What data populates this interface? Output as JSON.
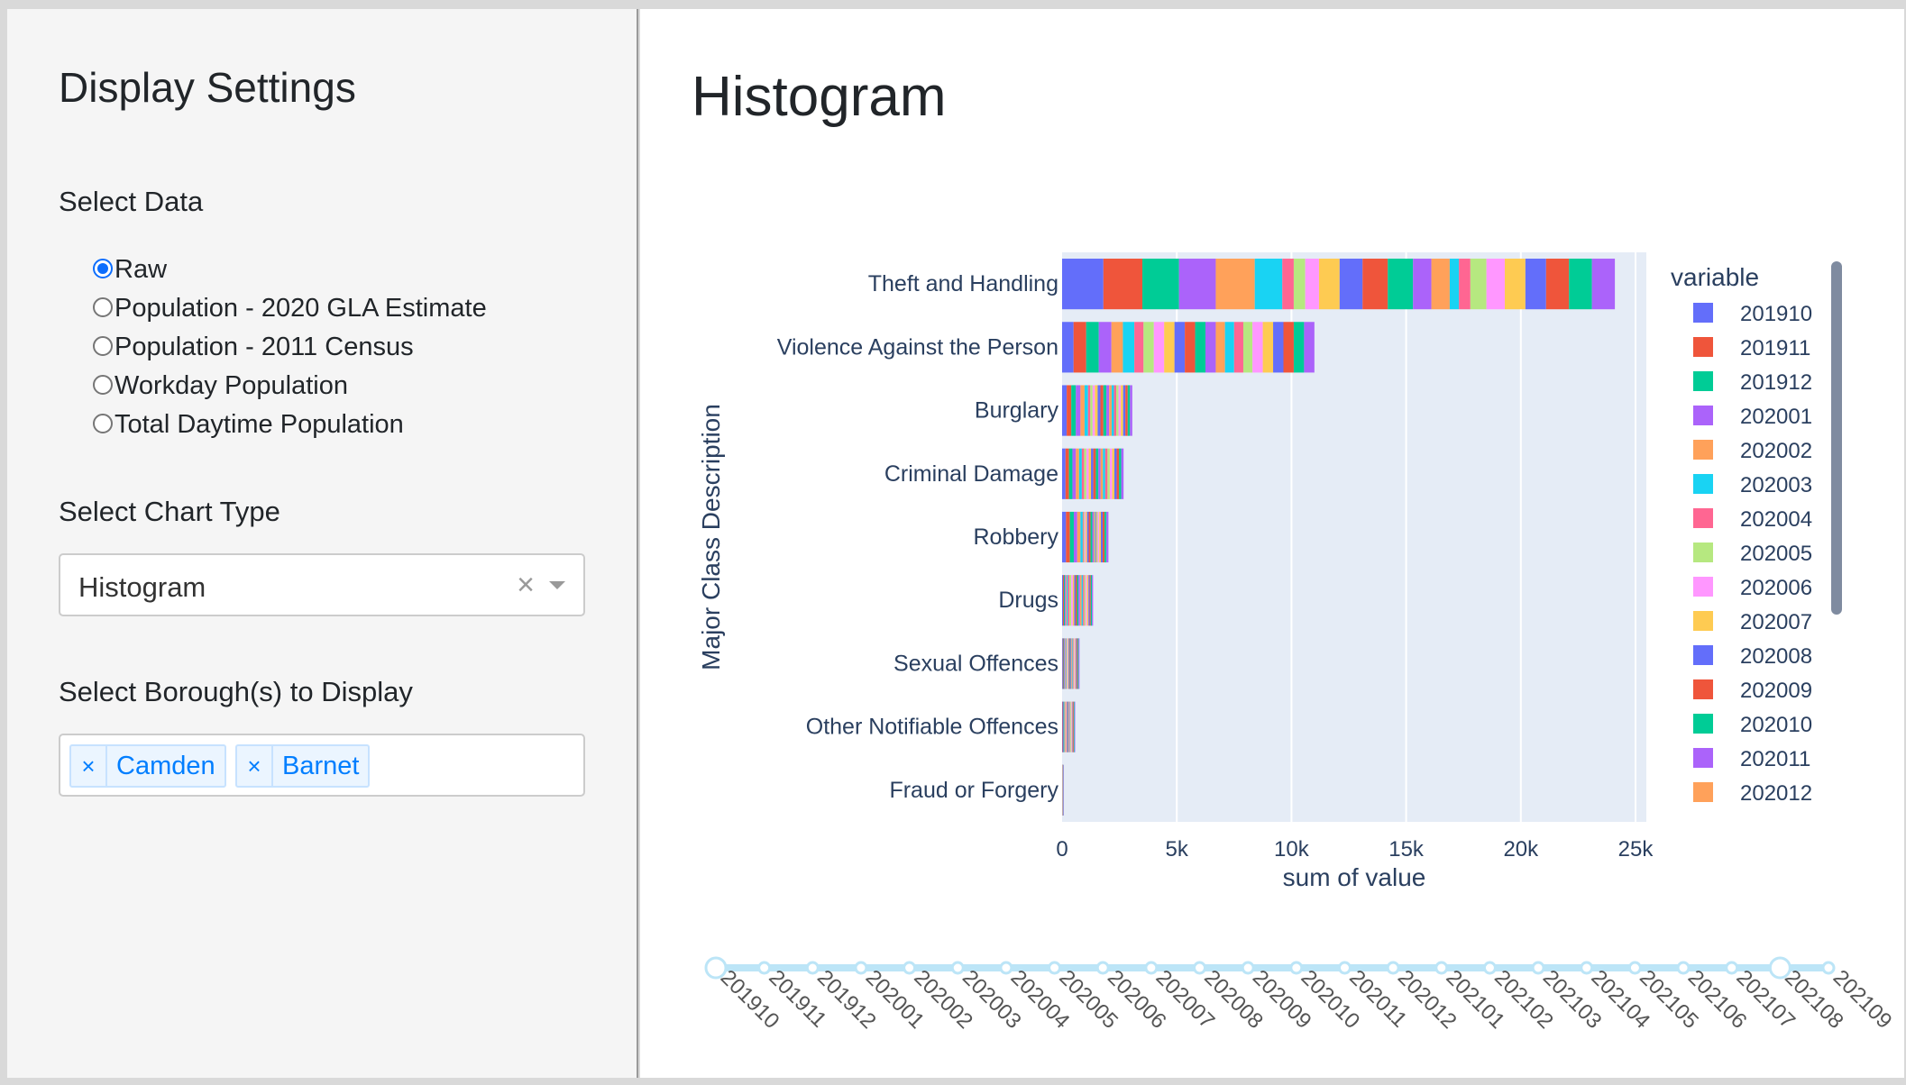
{
  "sidebar": {
    "title": "Display Settings",
    "select_data_label": "Select Data",
    "data_options": [
      {
        "label": "Raw",
        "checked": true
      },
      {
        "label": "Population - 2020 GLA Estimate",
        "checked": false
      },
      {
        "label": "Population - 2011 Census",
        "checked": false
      },
      {
        "label": "Workday Population",
        "checked": false
      },
      {
        "label": "Total Daytime Population",
        "checked": false
      }
    ],
    "chart_type_label": "Select Chart Type",
    "chart_type_value": "Histogram",
    "chart_type_clear": "×",
    "borough_label": "Select Borough(s) to Display",
    "boroughs": [
      {
        "remove": "×",
        "label": "Camden"
      },
      {
        "remove": "×",
        "label": "Barnet"
      }
    ]
  },
  "main": {
    "title": "Histogram"
  },
  "colors": {
    "palette": [
      "#636efa",
      "#EF553B",
      "#00cc96",
      "#ab63fa",
      "#FFA15A",
      "#19d3f3",
      "#FF6692",
      "#B6E880",
      "#FF97FF",
      "#FECB52"
    ],
    "plot_bg": "#e5ecf6",
    "text": "#2a3f5f",
    "slider": "#bce5f7"
  },
  "chart_data": {
    "type": "bar",
    "orientation": "horizontal",
    "stacked": true,
    "title": "",
    "xlabel": "sum of value",
    "ylabel": "Major Class Description",
    "xlim": [
      0,
      25000
    ],
    "x_ticks": [
      0,
      5000,
      10000,
      15000,
      20000,
      25000
    ],
    "x_tick_labels": [
      "0",
      "5k",
      "10k",
      "15k",
      "20k",
      "25k"
    ],
    "grid": true,
    "categories": [
      "Theft and Handling",
      "Violence Against the Person",
      "Burglary",
      "Criminal Damage",
      "Robbery",
      "Drugs",
      "Sexual Offences",
      "Other Notifiable Offences",
      "Fraud or Forgery"
    ],
    "series_names": [
      "201910",
      "201911",
      "201912",
      "202001",
      "202002",
      "202003",
      "202004",
      "202005",
      "202006",
      "202007",
      "202008",
      "202009",
      "202010",
      "202011",
      "202012",
      "202101",
      "202102",
      "202103",
      "202104",
      "202105",
      "202106",
      "202107",
      "202108",
      "202109"
    ],
    "values": [
      [
        1800,
        1700,
        1600,
        1600,
        1700,
        1200,
        500,
        500,
        600,
        900,
        1000,
        1100,
        1100,
        800,
        800,
        400,
        500,
        700,
        800,
        900,
        900,
        1000,
        1000,
        1000
      ],
      [
        500,
        550,
        550,
        550,
        500,
        500,
        400,
        450,
        450,
        450,
        450,
        450,
        450,
        450,
        400,
        400,
        400,
        400,
        450,
        450,
        450,
        450,
        450,
        450
      ],
      [
        200,
        200,
        200,
        200,
        180,
        150,
        100,
        100,
        100,
        120,
        120,
        130,
        130,
        120,
        110,
        100,
        100,
        100,
        100,
        100,
        100,
        100,
        100,
        100
      ],
      [
        150,
        150,
        150,
        150,
        140,
        120,
        100,
        100,
        100,
        100,
        100,
        110,
        110,
        100,
        100,
        100,
        100,
        100,
        100,
        100,
        100,
        100,
        100,
        100
      ],
      [
        170,
        170,
        170,
        150,
        140,
        100,
        40,
        40,
        50,
        60,
        70,
        80,
        80,
        60,
        50,
        40,
        40,
        50,
        60,
        70,
        80,
        80,
        80,
        90
      ],
      [
        40,
        40,
        40,
        40,
        40,
        50,
        70,
        80,
        70,
        60,
        60,
        60,
        60,
        70,
        70,
        60,
        60,
        60,
        60,
        60,
        50,
        50,
        50,
        50
      ],
      [
        30,
        30,
        30,
        30,
        30,
        30,
        20,
        20,
        30,
        30,
        30,
        30,
        30,
        30,
        30,
        30,
        30,
        30,
        40,
        40,
        40,
        40,
        40,
        40
      ],
      [
        20,
        20,
        20,
        20,
        20,
        20,
        20,
        20,
        20,
        20,
        20,
        20,
        20,
        30,
        30,
        20,
        20,
        30,
        30,
        30,
        30,
        30,
        30,
        30
      ],
      [
        2,
        2,
        2,
        2,
        2,
        2,
        2,
        2,
        2,
        2,
        2,
        2,
        2,
        2,
        2,
        2,
        2,
        2,
        2,
        2,
        2,
        2,
        2,
        2
      ]
    ],
    "legend": {
      "title": "variable",
      "position": "right",
      "visible_entries": [
        "201910",
        "201911",
        "201912",
        "202001",
        "202002",
        "202003",
        "202004",
        "202005",
        "202006",
        "202007",
        "202008",
        "202009",
        "202010",
        "202011",
        "202012"
      ]
    },
    "slider": {
      "steps": [
        "201910",
        "201911",
        "201912",
        "202001",
        "202002",
        "202003",
        "202004",
        "202005",
        "202006",
        "202007",
        "202008",
        "202009",
        "202010",
        "202011",
        "202012",
        "202101",
        "202102",
        "202103",
        "202104",
        "202105",
        "202106",
        "202107",
        "202108",
        "202109"
      ],
      "range_start": "201910",
      "range_end": "202108"
    }
  }
}
